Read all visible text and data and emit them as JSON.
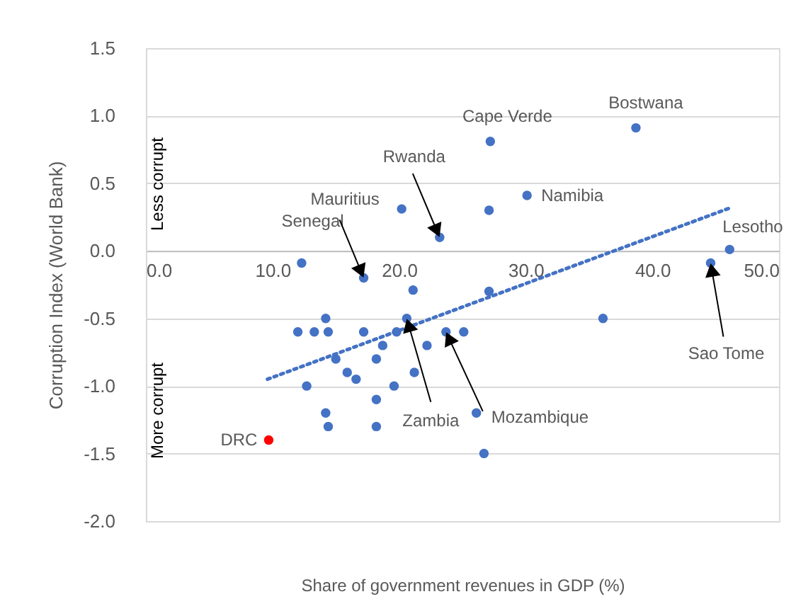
{
  "chart_data": {
    "type": "scatter",
    "xlabel": "Share of government revenues in GDP (%)",
    "ylabel": "Corruption Index (World Bank)",
    "xlim": [
      0,
      50
    ],
    "ylim": [
      -2,
      1.5
    ],
    "xticks": [
      {
        "value": 0,
        "label": "0.0"
      },
      {
        "value": 10,
        "label": "10.0"
      },
      {
        "value": 20,
        "label": "20.0"
      },
      {
        "value": 30,
        "label": "30.0"
      },
      {
        "value": 40,
        "label": "40.0"
      },
      {
        "value": 50,
        "label": "50.0"
      }
    ],
    "yticks": [
      {
        "value": -2,
        "label": "-2.0"
      },
      {
        "value": -1.5,
        "label": "-1.5"
      },
      {
        "value": -1,
        "label": "-1.0"
      },
      {
        "value": -0.5,
        "label": "-0.5"
      },
      {
        "value": 0,
        "label": "0.0"
      },
      {
        "value": 0.5,
        "label": "0.5"
      },
      {
        "value": 1,
        "label": "1.0"
      },
      {
        "value": 1.5,
        "label": "1.5"
      }
    ],
    "grid": "y",
    "series": [
      {
        "marker": "circle",
        "x": [
          12.3,
          17.2,
          20.2,
          23.2,
          27.1,
          27.1,
          21.1,
          14.2,
          20.6,
          12.0,
          13.3,
          14.4,
          17.2,
          19.8,
          23.7,
          25.1,
          18.7,
          22.2,
          15.0,
          18.2,
          15.9,
          16.6,
          21.2,
          12.7,
          19.6,
          18.2,
          14.2,
          26.1,
          14.4,
          18.2,
          26.7,
          27.2,
          38.7,
          30.1,
          46.1,
          44.6,
          36.1,
          9.7
        ],
        "values": [
          -0.09,
          -0.2,
          0.31,
          0.1,
          0.3,
          -0.3,
          -0.29,
          -0.5,
          -0.5,
          -0.6,
          -0.6,
          -0.6,
          -0.6,
          -0.6,
          -0.6,
          -0.6,
          -0.7,
          -0.7,
          -0.8,
          -0.8,
          -0.9,
          -0.95,
          -0.9,
          -1.0,
          -1.0,
          -1.1,
          -1.2,
          -1.2,
          -1.3,
          -1.3,
          -1.5,
          0.81,
          0.91,
          0.41,
          0.01,
          -0.09,
          -0.5,
          -1.4
        ],
        "colors": [
          "#4472c4",
          "#4472c4",
          "#4472c4",
          "#4472c4",
          "#4472c4",
          "#4472c4",
          "#4472c4",
          "#4472c4",
          "#4472c4",
          "#4472c4",
          "#4472c4",
          "#4472c4",
          "#4472c4",
          "#4472c4",
          "#4472c4",
          "#4472c4",
          "#4472c4",
          "#4472c4",
          "#4472c4",
          "#4472c4",
          "#4472c4",
          "#4472c4",
          "#4472c4",
          "#4472c4",
          "#4472c4",
          "#4472c4",
          "#4472c4",
          "#4472c4",
          "#4472c4",
          "#4472c4",
          "#4472c4",
          "#4472c4",
          "#4472c4",
          "#4472c4",
          "#4472c4",
          "#4472c4",
          "#4472c4",
          "#ff0000"
        ]
      },
      {
        "type": "line",
        "x": [
          9.6,
          46.2
        ],
        "values": [
          -0.95,
          0.32
        ],
        "color": "#4472c4",
        "line_style": "dotted"
      }
    ],
    "annotations": [
      {
        "text": "Cape Verde",
        "x": 27.2,
        "y": 0.81
      },
      {
        "text": "Bostwana",
        "x": 38.7,
        "y": 0.91
      },
      {
        "text": "Namibia",
        "x": 30.1,
        "y": 0.41
      },
      {
        "text": "Lesotho",
        "x": 46.1,
        "y": 0.01
      },
      {
        "text": "Sao Tome",
        "x": 44.6,
        "y": -0.09
      },
      {
        "text": "Rwanda",
        "x": 23.2,
        "y": 0.1
      },
      {
        "text": "Mauritius",
        "x": 20.2,
        "y": 0.31
      },
      {
        "text": "Senegal",
        "x": 17.2,
        "y": -0.2
      },
      {
        "text": "Zambia",
        "x": 20.6,
        "y": -0.5
      },
      {
        "text": "Mozambique",
        "x": 23.7,
        "y": -0.6
      },
      {
        "text": "DRC",
        "x": 9.7,
        "y": -1.4
      },
      "Less corrupt",
      "More corrupt"
    ]
  }
}
